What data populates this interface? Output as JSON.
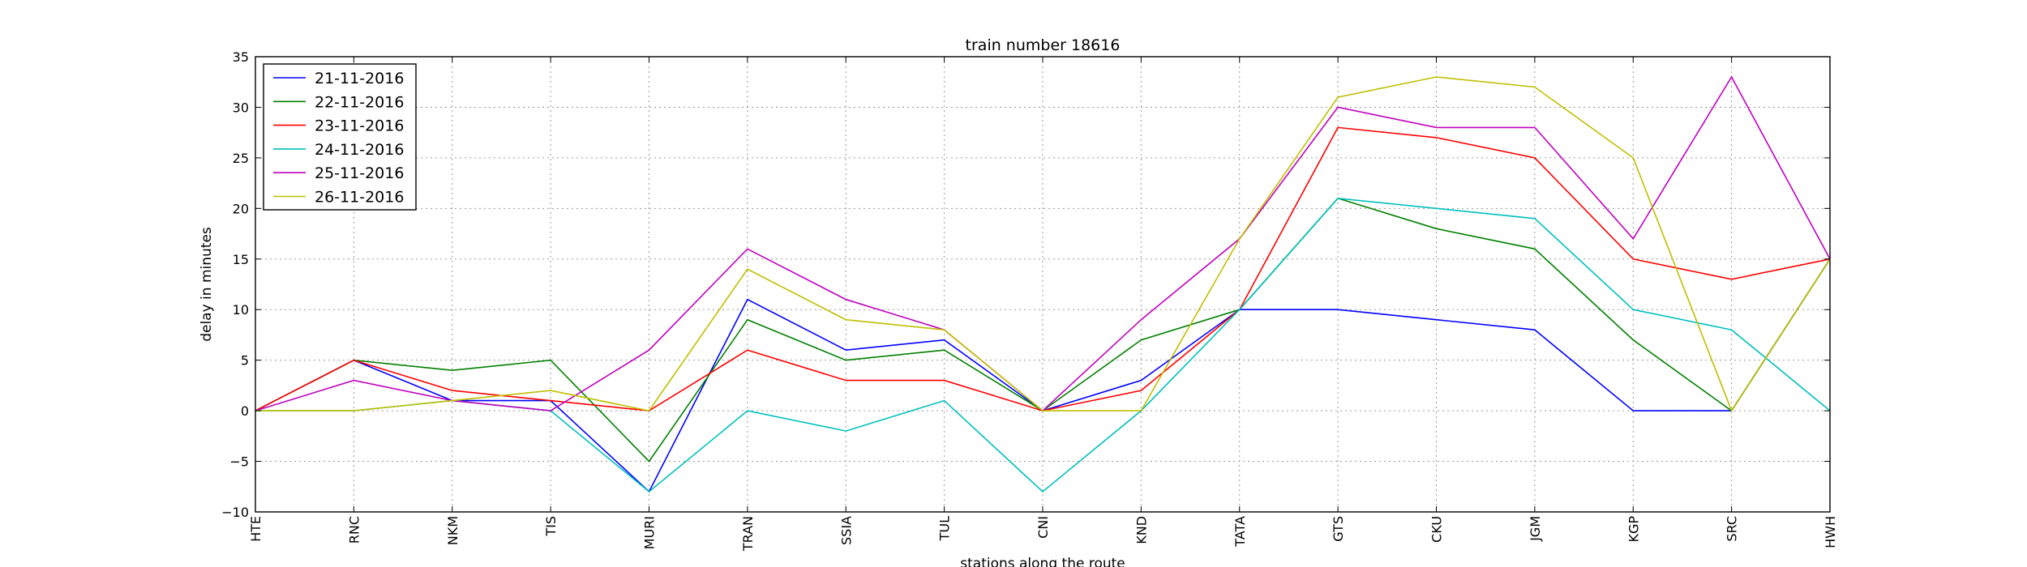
{
  "chart_data": {
    "type": "line",
    "title": "train number 18616",
    "xlabel": "stations along the route",
    "ylabel": "delay in minutes",
    "categories": [
      "HTE",
      "RNC",
      "NKM",
      "TIS",
      "MURI",
      "TRAN",
      "SSIA",
      "TUL",
      "CNI",
      "KND",
      "TATA",
      "GTS",
      "CKU",
      "JGM",
      "KGP",
      "SRC",
      "HWH"
    ],
    "ylim": [
      -10,
      35
    ],
    "yticks": [
      -10,
      -5,
      0,
      5,
      10,
      15,
      20,
      25,
      30,
      35
    ],
    "grid": true,
    "legend_position": "top-left",
    "series": [
      {
        "name": "21-11-2016",
        "color": "#0000ff",
        "values": [
          0,
          5,
          1,
          1,
          -8,
          11,
          6,
          7,
          0,
          3,
          10,
          10,
          9,
          8,
          0,
          0,
          15
        ]
      },
      {
        "name": "22-11-2016",
        "color": "#008000",
        "values": [
          0,
          5,
          4,
          5,
          -5,
          9,
          5,
          6,
          0,
          7,
          10,
          21,
          18,
          16,
          7,
          0,
          15
        ]
      },
      {
        "name": "23-11-2016",
        "color": "#ff0000",
        "values": [
          0,
          5,
          2,
          1,
          0,
          6,
          3,
          3,
          0,
          2,
          10,
          28,
          27,
          25,
          15,
          13,
          15
        ]
      },
      {
        "name": "24-11-2016",
        "color": "#00bfbf",
        "values": [
          0,
          0,
          1,
          0,
          -8,
          0,
          -2,
          1,
          -8,
          0,
          10,
          21,
          20,
          19,
          10,
          8,
          0
        ]
      },
      {
        "name": "25-11-2016",
        "color": "#bf00bf",
        "values": [
          0,
          3,
          1,
          0,
          6,
          16,
          11,
          8,
          0,
          9,
          17,
          30,
          28,
          28,
          17,
          33,
          15
        ]
      },
      {
        "name": "26-11-2016",
        "color": "#bfbf00",
        "values": [
          0,
          0,
          1,
          2,
          0,
          14,
          9,
          8,
          0,
          0,
          17,
          31,
          33,
          32,
          25,
          0,
          15
        ]
      }
    ]
  }
}
